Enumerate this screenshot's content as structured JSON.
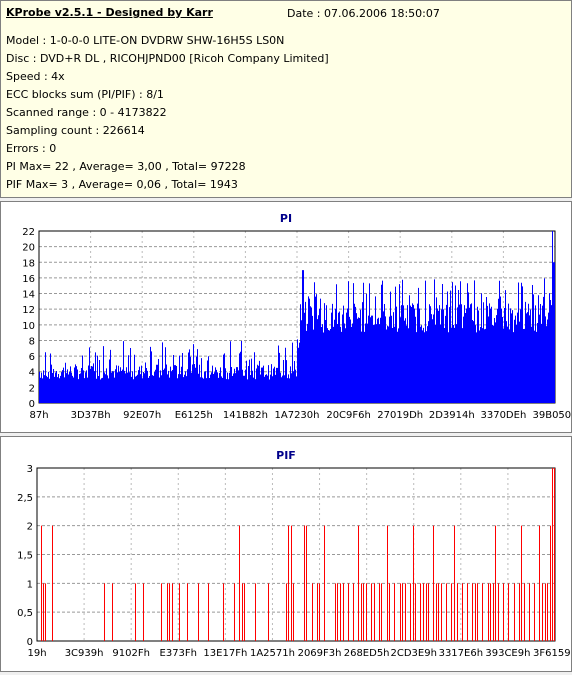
{
  "header": {
    "title": "KProbe v2.5.1 - Designed by Karr",
    "date": "Date : 07.06.2006 18:50:07"
  },
  "info_lines": [
    "Model : 1-0-0-0 LITE-ON DVDRW SHW-16H5S  LS0N",
    "Disc : DVD+R DL , RICOHJPND00 [Ricoh Company Limited]",
    "Speed : 4x",
    "ECC blocks sum (PI/PIF) : 8/1",
    "Scanned range : 0 - 4173822",
    "Sampling count : 226614",
    "Errors : 0",
    "PI Max= 22 , Average= 3,00 , Total= 97228",
    "PIF Max= 3 , Average= 0,06 , Total= 1943"
  ],
  "colors": {
    "pi": "#0000ff",
    "pif": "#ff0000",
    "title": "#00008b",
    "info_bg": "#ffffe6"
  },
  "chart_data": [
    {
      "type": "area",
      "title": "PI",
      "xlabel": "",
      "ylabel": "",
      "ylim": [
        0,
        22
      ],
      "y_ticks": [
        "0",
        "2",
        "4",
        "6",
        "8",
        "10",
        "12",
        "14",
        "16",
        "18",
        "20",
        "22"
      ],
      "x_tick_labels": [
        "87h",
        "3D37Bh",
        "92E07h",
        "E6125h",
        "141B82h",
        "1A7230h",
        "20C9F6h",
        "27019Dh",
        "2D3914h",
        "3370DEh",
        "39B050h"
      ],
      "grid": true,
      "series": [
        {
          "segments": [
            {
              "from": 0.0,
              "to": 0.5,
              "base_min": 3,
              "base_max": 5,
              "spike_prob": 0.16,
              "spike_max": 8
            },
            {
              "from": 0.5,
              "to": 0.505,
              "base_min": 6,
              "base_max": 9,
              "spike_prob": 0.3,
              "spike_max": 11
            },
            {
              "from": 0.505,
              "to": 1.0,
              "base_min": 9,
              "base_max": 13,
              "spike_prob": 0.14,
              "spike_max": 16
            }
          ],
          "peaks": [
            {
              "at": 0.51,
              "value": 17
            },
            {
              "at": 0.995,
              "value": 22
            },
            {
              "at": 0.998,
              "value": 18
            }
          ]
        }
      ]
    },
    {
      "type": "bar",
      "title": "PIF",
      "xlabel": "",
      "ylabel": "",
      "ylim": [
        0,
        3
      ],
      "y_ticks": [
        "0",
        "0,5",
        "1",
        "1,5",
        "2",
        "2,5",
        "3"
      ],
      "x_tick_labels": [
        "19h",
        "3C939h",
        "9102Fh",
        "E373Fh",
        "13E17Fh",
        "1A2571h",
        "2069F3h",
        "268ED5h",
        "2CD3E9h",
        "3317E6h",
        "393CE9h",
        "3F6159h"
      ],
      "grid": true,
      "series": [
        {
          "values_by_position": [
            [
              0.008,
              2
            ],
            [
              0.012,
              1
            ],
            [
              0.016,
              1
            ],
            [
              0.028,
              2
            ],
            [
              0.13,
              1
            ],
            [
              0.145,
              1
            ],
            [
              0.19,
              1
            ],
            [
              0.205,
              1
            ],
            [
              0.24,
              1
            ],
            [
              0.25,
              1
            ],
            [
              0.255,
              1
            ],
            [
              0.26,
              1
            ],
            [
              0.275,
              1
            ],
            [
              0.29,
              1
            ],
            [
              0.31,
              1
            ],
            [
              0.33,
              1
            ],
            [
              0.36,
              1
            ],
            [
              0.38,
              1
            ],
            [
              0.39,
              2
            ],
            [
              0.395,
              1
            ],
            [
              0.4,
              1
            ],
            [
              0.42,
              1
            ],
            [
              0.445,
              1
            ],
            [
              0.48,
              1
            ],
            [
              0.485,
              2
            ],
            [
              0.49,
              2
            ],
            [
              0.495,
              1
            ],
            [
              0.515,
              2
            ],
            [
              0.52,
              2
            ],
            [
              0.53,
              1
            ],
            [
              0.54,
              1
            ],
            [
              0.545,
              1
            ],
            [
              0.555,
              2
            ],
            [
              0.575,
              1
            ],
            [
              0.58,
              1
            ],
            [
              0.585,
              1
            ],
            [
              0.59,
              1
            ],
            [
              0.6,
              1
            ],
            [
              0.61,
              1
            ],
            [
              0.62,
              2
            ],
            [
              0.625,
              1
            ],
            [
              0.63,
              1
            ],
            [
              0.635,
              1
            ],
            [
              0.645,
              1
            ],
            [
              0.65,
              1
            ],
            [
              0.66,
              1
            ],
            [
              0.665,
              1
            ],
            [
              0.675,
              2
            ],
            [
              0.68,
              1
            ],
            [
              0.69,
              1
            ],
            [
              0.7,
              1
            ],
            [
              0.705,
              1
            ],
            [
              0.71,
              1
            ],
            [
              0.72,
              1
            ],
            [
              0.725,
              2
            ],
            [
              0.73,
              1
            ],
            [
              0.74,
              1
            ],
            [
              0.745,
              1
            ],
            [
              0.75,
              1
            ],
            [
              0.755,
              1
            ],
            [
              0.765,
              2
            ],
            [
              0.77,
              1
            ],
            [
              0.775,
              1
            ],
            [
              0.78,
              1
            ],
            [
              0.79,
              1
            ],
            [
              0.8,
              1
            ],
            [
              0.805,
              2
            ],
            [
              0.81,
              1
            ],
            [
              0.82,
              1
            ],
            [
              0.83,
              1
            ],
            [
              0.84,
              1
            ],
            [
              0.845,
              1
            ],
            [
              0.85,
              1
            ],
            [
              0.86,
              1
            ],
            [
              0.87,
              1
            ],
            [
              0.875,
              1
            ],
            [
              0.88,
              1
            ],
            [
              0.885,
              2
            ],
            [
              0.89,
              1
            ],
            [
              0.9,
              1
            ],
            [
              0.91,
              1
            ],
            [
              0.92,
              1
            ],
            [
              0.93,
              1
            ],
            [
              0.935,
              2
            ],
            [
              0.94,
              1
            ],
            [
              0.95,
              1
            ],
            [
              0.96,
              1
            ],
            [
              0.97,
              2
            ],
            [
              0.975,
              1
            ],
            [
              0.98,
              1
            ],
            [
              0.985,
              1
            ],
            [
              0.99,
              2
            ],
            [
              0.995,
              3
            ],
            [
              0.998,
              3
            ]
          ]
        }
      ]
    }
  ]
}
